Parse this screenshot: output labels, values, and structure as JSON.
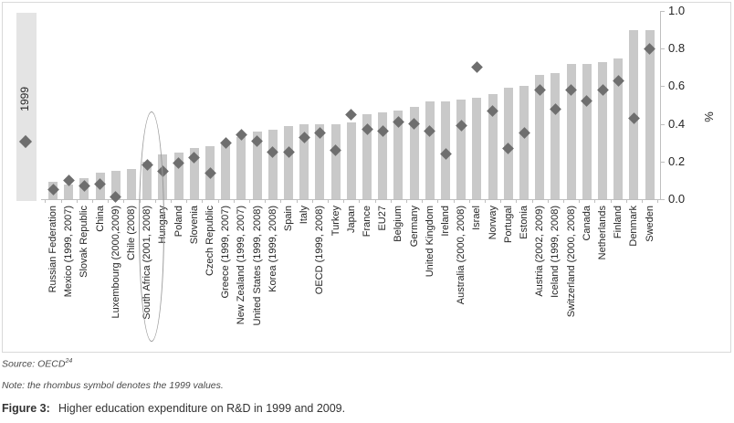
{
  "legend": {
    "label": "1999"
  },
  "axis": {
    "ticks": [
      "0.0",
      "0.2",
      "0.4",
      "0.6",
      "0.8",
      "1.0"
    ],
    "unit": "%"
  },
  "colors": {
    "bar": "#c9c9c9",
    "rhombus": "#6e6e6e",
    "legend_box": "#e4e4e4",
    "axis_line": "#bfbfbf"
  },
  "chart_data": {
    "type": "bar",
    "title": "",
    "xlabel": "",
    "ylabel": "%",
    "ylim": [
      0,
      1.0
    ],
    "grid": false,
    "legend_position": "left",
    "highlighted_category": "South Africa (2001, 2008)",
    "categories": [
      "Russian Federation",
      "Mexico (1999, 2007)",
      "Slovak Republic",
      "China",
      "Luxembourg (2000,2009)",
      "Chile (2008)",
      "South Africa (2001, 2008)",
      "Hungary",
      "Poland",
      "Slovenia",
      "Czech Republic",
      "Greece (1999, 2007)",
      "New Zealand (1999, 2007)",
      "United States (1999, 2008)",
      "Korea (1999, 2008)",
      "Spain",
      "Italy",
      "OECD (1999, 2008)",
      "Turkey",
      "Japan",
      "France",
      "EU27",
      "Belgium",
      "Germany",
      "United Kingdom",
      "Ireland",
      "Australia (2000, 2008)",
      "Israel",
      "Norway",
      "Portugal",
      "Estonia",
      "Austria (2002, 2009)",
      "Iceland (1999, 2008)",
      "Switzerland (2000, 2008)",
      "Canada",
      "Netherlands",
      "Finland",
      "Denmark",
      "Sweden"
    ],
    "series": [
      {
        "name": "2009 (bar)",
        "values": [
          0.09,
          0.08,
          0.11,
          0.14,
          0.15,
          0.16,
          0.2,
          0.24,
          0.25,
          0.27,
          0.28,
          0.29,
          0.33,
          0.36,
          0.37,
          0.39,
          0.4,
          0.4,
          0.4,
          0.41,
          0.45,
          0.46,
          0.47,
          0.49,
          0.52,
          0.52,
          0.53,
          0.54,
          0.56,
          0.59,
          0.6,
          0.66,
          0.67,
          0.72,
          0.72,
          0.73,
          0.75,
          0.9,
          0.9
        ]
      },
      {
        "name": "1999 (rhombus)",
        "values": [
          0.05,
          0.1,
          0.07,
          0.08,
          0.01,
          null,
          0.18,
          0.15,
          0.19,
          0.22,
          0.14,
          0.3,
          0.34,
          0.31,
          0.25,
          0.25,
          0.33,
          0.35,
          0.26,
          0.45,
          0.37,
          0.36,
          0.41,
          0.4,
          0.36,
          0.24,
          0.39,
          0.7,
          0.47,
          0.27,
          0.35,
          0.58,
          0.48,
          0.58,
          0.52,
          0.58,
          0.63,
          0.43,
          0.8
        ]
      }
    ]
  },
  "footer": {
    "source_prefix": "Source: OECD",
    "source_sup": "24",
    "note": "Note: the rhombus symbol denotes the 1999 values.",
    "figure_label": "Figure 3:",
    "figure_caption": "Higher education expenditure on R&D in 1999 and 2009."
  }
}
